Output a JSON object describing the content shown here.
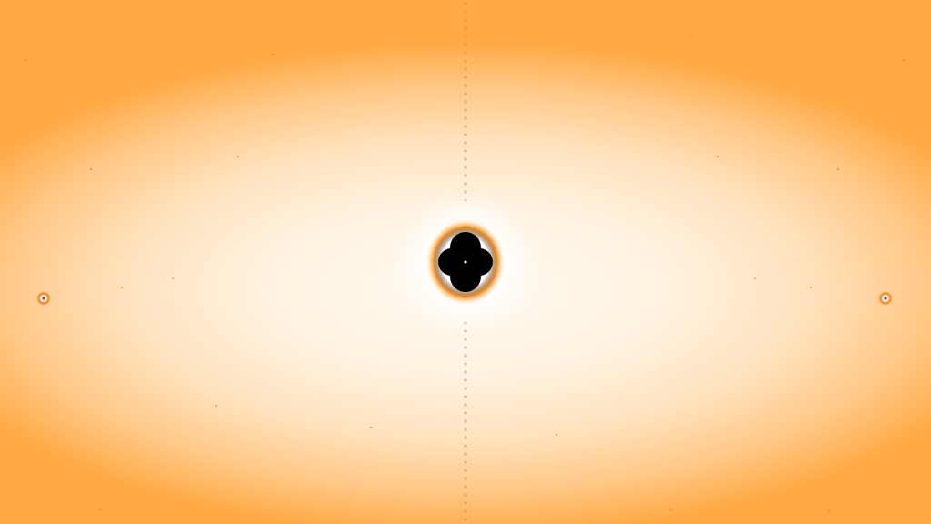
{
  "image": {
    "subject": "fractal",
    "colors": {
      "outer": "#ffa640",
      "mid": "#ffd9a8",
      "inner": "#fff9f1",
      "core": "#000000",
      "ring": "#b85a00"
    }
  }
}
